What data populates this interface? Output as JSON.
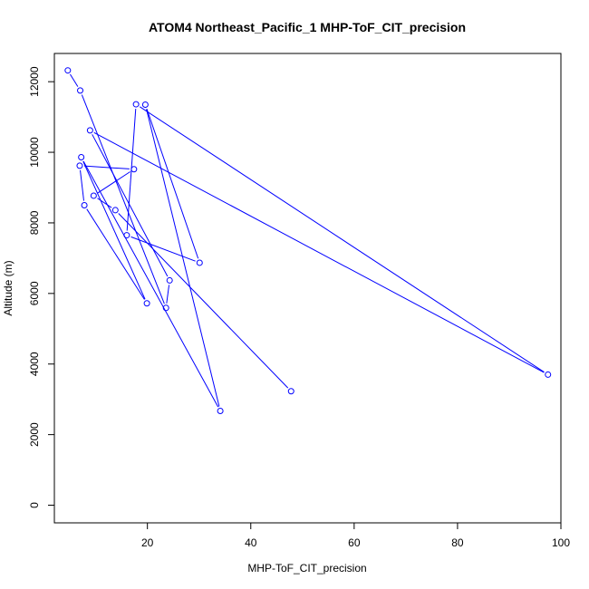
{
  "chart_data": {
    "type": "line",
    "title": "ATOM4 Northeast_Pacific_1 MHP-ToF_CIT_precision",
    "xlabel": "MHP-ToF_CIT_precision",
    "ylabel": "Altitude (m)",
    "xlim": [
      2.0,
      100.0
    ],
    "ylim": [
      -500,
      12800
    ],
    "xticks": [
      20,
      40,
      60,
      80,
      100
    ],
    "yticks": [
      0,
      2000,
      4000,
      6000,
      8000,
      10000,
      12000
    ],
    "grid": false,
    "legend": "none",
    "series_color": "#0000ff",
    "points": [
      {
        "x": 4.6,
        "y": 12320
      },
      {
        "x": 7.0,
        "y": 11750
      },
      {
        "x": 23.6,
        "y": 5590
      },
      {
        "x": 24.3,
        "y": 6370
      },
      {
        "x": 8.9,
        "y": 10620
      },
      {
        "x": 97.5,
        "y": 3700
      },
      {
        "x": 17.8,
        "y": 11360
      },
      {
        "x": 16.0,
        "y": 7650
      },
      {
        "x": 30.1,
        "y": 6870
      },
      {
        "x": 19.6,
        "y": 11350
      },
      {
        "x": 34.1,
        "y": 2670
      },
      {
        "x": 7.2,
        "y": 9860
      },
      {
        "x": 19.9,
        "y": 5720
      },
      {
        "x": 7.8,
        "y": 8500
      },
      {
        "x": 6.9,
        "y": 9620
      },
      {
        "x": 17.4,
        "y": 9520
      },
      {
        "x": 9.6,
        "y": 8770
      },
      {
        "x": 13.8,
        "y": 8360
      },
      {
        "x": 47.8,
        "y": 3230
      }
    ]
  }
}
